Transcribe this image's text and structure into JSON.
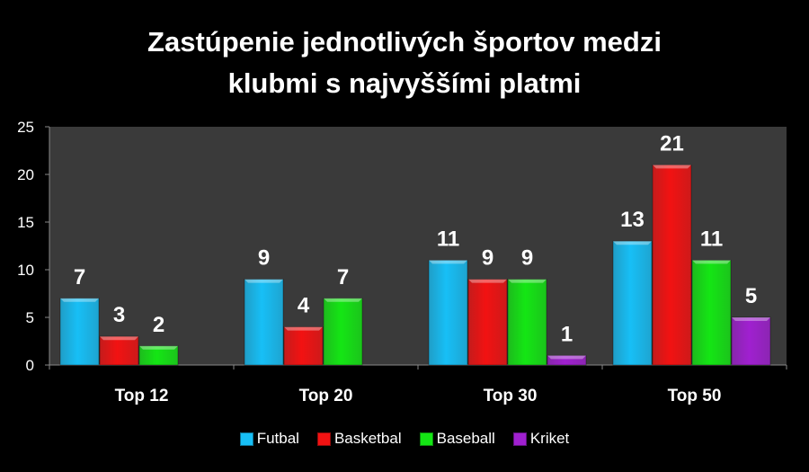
{
  "chart_data": {
    "type": "bar",
    "title_lines": [
      "Zastúpenie jednotlivých športov medzi",
      "klubmi s najvyššími platmi"
    ],
    "categories": [
      "Top 12",
      "Top 20",
      "Top 30",
      "Top 50"
    ],
    "series": [
      {
        "name": "Futbal",
        "color": "#17bff6",
        "values": [
          7,
          9,
          11,
          13
        ]
      },
      {
        "name": "Basketbal",
        "color": "#f21212",
        "values": [
          3,
          4,
          9,
          21
        ]
      },
      {
        "name": "Baseball",
        "color": "#14e614",
        "values": [
          2,
          7,
          9,
          11
        ]
      },
      {
        "name": "Kriket",
        "color": "#a020d0",
        "values": [
          null,
          null,
          1,
          5
        ]
      }
    ],
    "ylim": [
      0,
      25
    ],
    "yticks": [
      0,
      5,
      10,
      15,
      20,
      25
    ],
    "grid": false,
    "legend_position": "bottom",
    "plot_background": "#3a3a3a"
  }
}
